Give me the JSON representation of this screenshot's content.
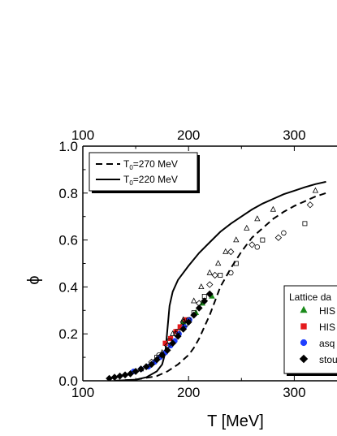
{
  "chart_data": {
    "type": "line",
    "xlabel": "T [MeV]",
    "ylabel": "ϕ",
    "xlim": [
      100,
      330
    ],
    "ylim": [
      0.0,
      1.0
    ],
    "x_ticks": [
      "100",
      "200",
      "300"
    ],
    "y_ticks": [
      "0.0",
      "0.2",
      "0.4",
      "0.6",
      "0.8",
      "1.0"
    ],
    "grid": false,
    "legend_lines": {
      "placement": "top-left",
      "entries": [
        {
          "prefix": "T",
          "sub": "0",
          "suffix": "=270 MeV",
          "style": "dashed"
        },
        {
          "prefix": "T",
          "sub": "0",
          "suffix": "=220 MeV",
          "style": "solid"
        }
      ]
    },
    "legend_markers": {
      "placement": "bottom-right",
      "title": "Lattice da",
      "entries": [
        {
          "label": "HIS",
          "marker": "triangle",
          "color": "#1a8a1a"
        },
        {
          "label": "HIS",
          "marker": "square",
          "color": "#e41a1c"
        },
        {
          "label": "asq",
          "marker": "circle",
          "color": "#1f3fff"
        },
        {
          "label": "stou",
          "marker": "diamond",
          "color": "#000000"
        }
      ]
    },
    "series": [
      {
        "label": "T0=270 MeV",
        "style": "dashed",
        "x": [
          130,
          150,
          170,
          180,
          190,
          200,
          205,
          210,
          215,
          220,
          225,
          230,
          240,
          250,
          260,
          270,
          280,
          290,
          300,
          310,
          320,
          330
        ],
        "y": [
          0.0,
          0.005,
          0.02,
          0.04,
          0.07,
          0.11,
          0.14,
          0.18,
          0.23,
          0.28,
          0.34,
          0.4,
          0.48,
          0.55,
          0.61,
          0.65,
          0.69,
          0.72,
          0.745,
          0.765,
          0.785,
          0.8
        ]
      },
      {
        "label": "T0=220 MeV",
        "style": "solid",
        "x": [
          130,
          150,
          160,
          170,
          175,
          178,
          180,
          182,
          185,
          190,
          200,
          210,
          220,
          230,
          240,
          250,
          260,
          270,
          280,
          290,
          300,
          310,
          320,
          330
        ],
        "y": [
          0.0,
          0.005,
          0.015,
          0.04,
          0.07,
          0.12,
          0.22,
          0.32,
          0.38,
          0.43,
          0.49,
          0.545,
          0.59,
          0.635,
          0.67,
          0.7,
          0.73,
          0.755,
          0.775,
          0.795,
          0.81,
          0.825,
          0.838,
          0.848
        ]
      },
      {
        "label": "HIS (triangle)",
        "marker": "triangle",
        "color": "#1a8a1a",
        "points": [
          [
            195,
            0.25
          ],
          [
            207,
            0.29
          ],
          [
            213,
            0.33
          ],
          [
            222,
            0.36
          ]
        ]
      },
      {
        "label": "HIS (square)",
        "marker": "square",
        "color": "#e41a1c",
        "points": [
          [
            178,
            0.16
          ],
          [
            183,
            0.18
          ],
          [
            188,
            0.21
          ],
          [
            192,
            0.23
          ],
          [
            197,
            0.26
          ]
        ]
      },
      {
        "label": "asq",
        "marker": "circle",
        "color": "#1f3fff",
        "points": [
          [
            148,
            0.04
          ],
          [
            155,
            0.05
          ],
          [
            162,
            0.06
          ],
          [
            168,
            0.08
          ],
          [
            173,
            0.1
          ],
          [
            178,
            0.12
          ],
          [
            183,
            0.15
          ],
          [
            187,
            0.17
          ],
          [
            191,
            0.2
          ],
          [
            196,
            0.23
          ],
          [
            201,
            0.26
          ]
        ]
      },
      {
        "label": "stou",
        "marker": "diamond",
        "color": "#000000",
        "points": [
          [
            125,
            0.01
          ],
          [
            130,
            0.015
          ],
          [
            135,
            0.02
          ],
          [
            140,
            0.025
          ],
          [
            145,
            0.03
          ],
          [
            150,
            0.04
          ],
          [
            155,
            0.05
          ],
          [
            160,
            0.06
          ],
          [
            165,
            0.07
          ],
          [
            170,
            0.09
          ],
          [
            175,
            0.11
          ],
          [
            180,
            0.13
          ],
          [
            185,
            0.16
          ],
          [
            190,
            0.19
          ],
          [
            195,
            0.22
          ],
          [
            200,
            0.25
          ],
          [
            205,
            0.28
          ],
          [
            210,
            0.31
          ],
          [
            215,
            0.34
          ],
          [
            220,
            0.37
          ]
        ]
      },
      {
        "label": "open triangles",
        "marker": "open-triangle",
        "color": "#000000",
        "points": [
          [
            155,
            0.05
          ],
          [
            175,
            0.12
          ],
          [
            185,
            0.2
          ],
          [
            195,
            0.26
          ],
          [
            205,
            0.34
          ],
          [
            212,
            0.4
          ],
          [
            220,
            0.46
          ],
          [
            228,
            0.5
          ],
          [
            235,
            0.55
          ],
          [
            245,
            0.6
          ],
          [
            255,
            0.65
          ],
          [
            265,
            0.69
          ],
          [
            280,
            0.73
          ],
          [
            320,
            0.81
          ]
        ]
      },
      {
        "label": "open diamonds",
        "marker": "open-diamond",
        "color": "#000000",
        "points": [
          [
            165,
            0.08
          ],
          [
            180,
            0.15
          ],
          [
            195,
            0.25
          ],
          [
            210,
            0.33
          ],
          [
            220,
            0.41
          ],
          [
            225,
            0.45
          ],
          [
            240,
            0.55
          ],
          [
            260,
            0.58
          ],
          [
            285,
            0.61
          ],
          [
            315,
            0.75
          ]
        ]
      },
      {
        "label": "open squares",
        "marker": "open-square",
        "color": "#000000",
        "points": [
          [
            170,
            0.1
          ],
          [
            182,
            0.17
          ],
          [
            190,
            0.21
          ],
          [
            197,
            0.24
          ],
          [
            205,
            0.29
          ],
          [
            215,
            0.36
          ],
          [
            230,
            0.45
          ],
          [
            245,
            0.5
          ],
          [
            270,
            0.6
          ],
          [
            310,
            0.67
          ]
        ]
      },
      {
        "label": "open circles",
        "marker": "open-circle",
        "color": "#000000",
        "points": [
          [
            172,
            0.11
          ],
          [
            188,
            0.2
          ],
          [
            200,
            0.26
          ],
          [
            215,
            0.34
          ],
          [
            240,
            0.46
          ],
          [
            265,
            0.57
          ],
          [
            290,
            0.63
          ]
        ]
      }
    ]
  }
}
